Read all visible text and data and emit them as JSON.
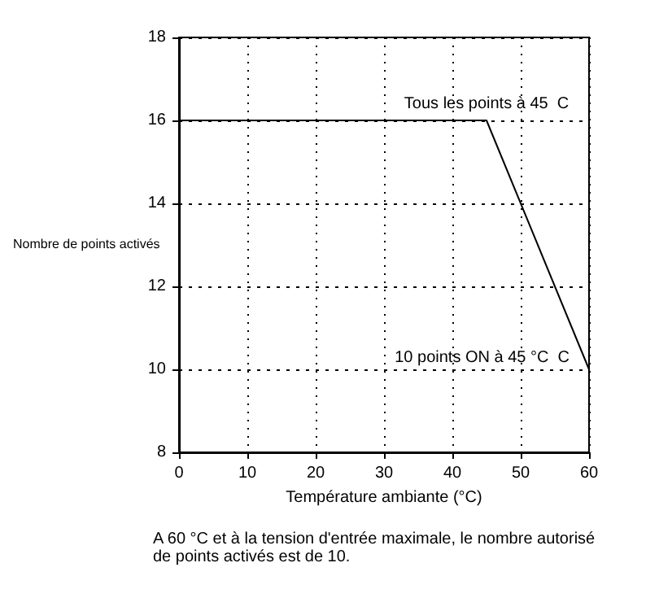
{
  "chart_data": {
    "type": "line",
    "xlabel": "Température ambiante (°C)",
    "ylabel": "Nombre de points activés",
    "x": [
      0,
      45,
      60
    ],
    "series": [
      {
        "color": "#000000",
        "values": [
          16,
          16,
          10
        ]
      }
    ],
    "xlim": [
      0,
      60
    ],
    "xticks": [
      0,
      10,
      20,
      30,
      40,
      50,
      60
    ],
    "ylim": [
      8,
      18
    ],
    "yticks": [
      8,
      10,
      12,
      14,
      16,
      18
    ],
    "grid": true,
    "marker": "none",
    "line_style": "solid",
    "annotations": [
      {
        "text": "Tous les points à 45  C",
        "x": 45,
        "y": 16
      },
      {
        "text": "10 points ON à 45 °C  C",
        "x": 60,
        "y": 10
      },
      "A 60 °C et à la tension d'entrée maximale, le nombre autorisé de points activés est de 10."
    ]
  }
}
